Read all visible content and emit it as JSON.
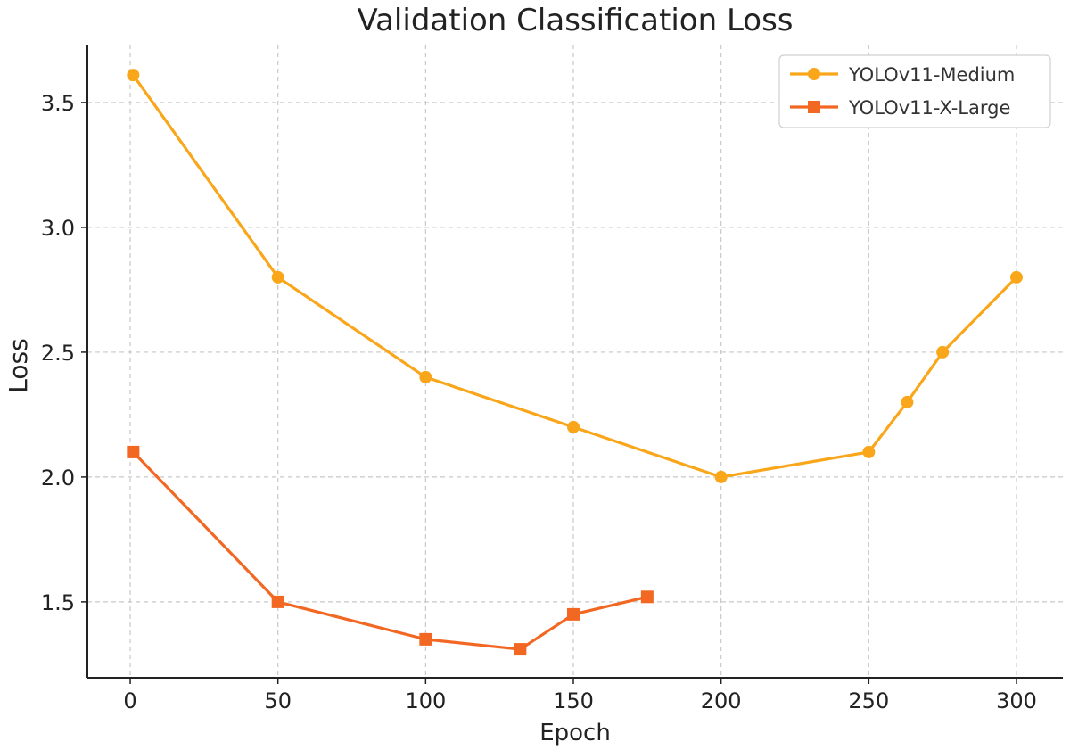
{
  "chart_data": {
    "type": "line",
    "title": "Validation Classification Loss",
    "xlabel": "Epoch",
    "ylabel": "Loss",
    "xlim": [
      -14.5,
      315.7
    ],
    "ylim": [
      1.196,
      3.732
    ],
    "xticks": [
      0,
      50,
      100,
      150,
      200,
      250,
      300
    ],
    "yticks": [
      1.5,
      2.0,
      2.5,
      3.0,
      3.5
    ],
    "xtick_labels": [
      "0",
      "50",
      "100",
      "150",
      "200",
      "250",
      "300"
    ],
    "ytick_labels": [
      "1.5",
      "2.0",
      "2.5",
      "3.0",
      "3.5"
    ],
    "grid": true,
    "legend_position": "top-right",
    "series": [
      {
        "name": "YOLOv11-Medium",
        "color": "#F9A61A",
        "marker": "circle",
        "x": [
          1,
          50,
          100,
          150,
          200,
          250,
          263,
          275,
          300
        ],
        "y": [
          3.61,
          2.8,
          2.4,
          2.2,
          2.0,
          2.1,
          2.3,
          2.5,
          2.8
        ]
      },
      {
        "name": "YOLOv11-X-Large",
        "color": "#F26722",
        "marker": "square",
        "x": [
          1,
          50,
          100,
          132,
          150,
          175
        ],
        "y": [
          2.1,
          1.5,
          1.35,
          1.31,
          1.45,
          1.52
        ]
      }
    ]
  }
}
